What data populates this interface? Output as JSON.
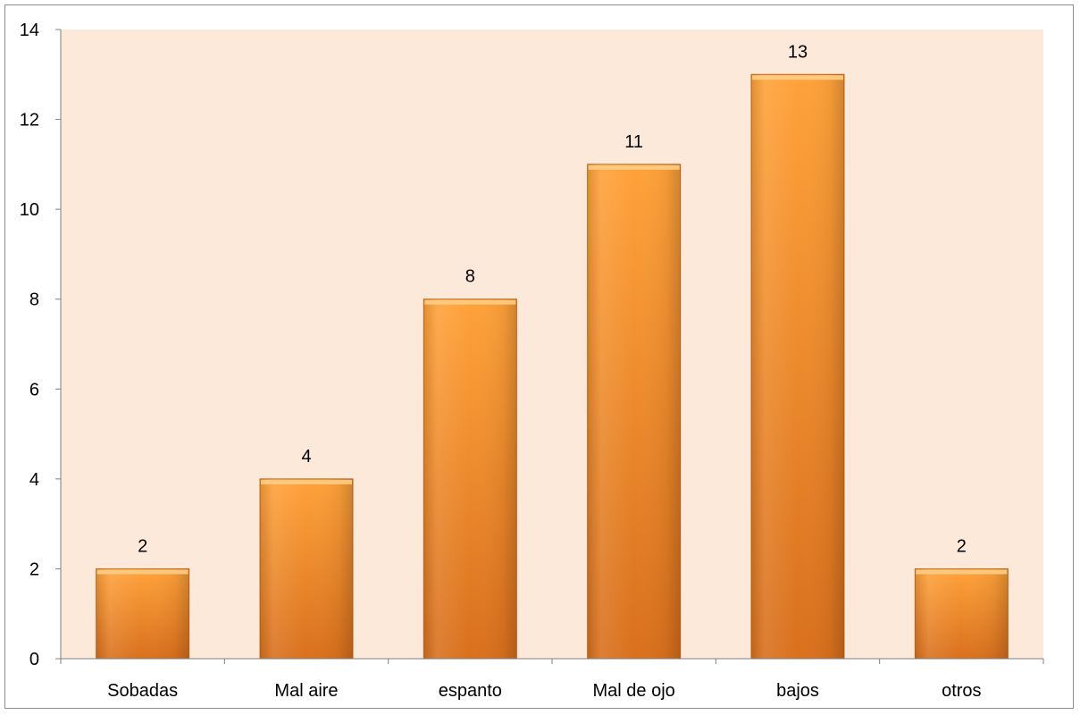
{
  "chart_data": {
    "type": "bar",
    "title": "",
    "xlabel": "",
    "ylabel": "",
    "categories": [
      "Sobadas",
      "Mal aire",
      "espanto",
      "Mal de ojo",
      "bajos",
      "otros"
    ],
    "values": [
      2,
      4,
      8,
      11,
      13,
      2
    ],
    "data_labels": [
      "2",
      "4",
      "8",
      "11",
      "13",
      "2"
    ],
    "ylim": [
      0,
      14
    ],
    "yticks": [
      "0",
      "2",
      "4",
      "6",
      "8",
      "10",
      "12",
      "14"
    ],
    "grid": false,
    "legend": "none",
    "colors": {
      "plot_background": "#fde9d9",
      "bar_light": "#ffa23a",
      "bar_dark": "#d9701d",
      "bar_edge": "#c8661a",
      "axis": "#7f7f7f"
    }
  }
}
